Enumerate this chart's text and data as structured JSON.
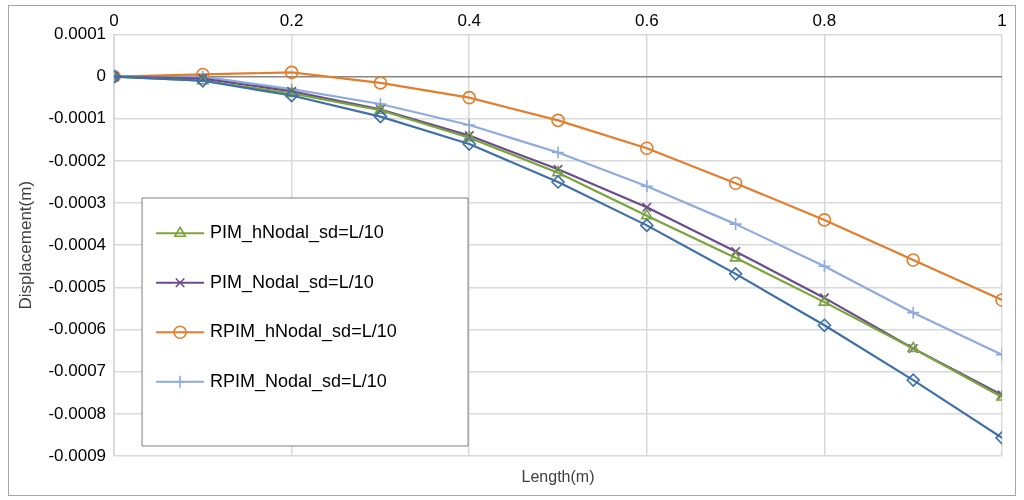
{
  "chart_data": {
    "type": "line",
    "xlabel": "Length(m)",
    "ylabel": "Displacement(m)",
    "x": [
      0,
      0.1,
      0.2,
      0.3,
      0.4,
      0.5,
      0.6,
      0.7,
      0.8,
      0.9,
      1
    ],
    "xlim": [
      0,
      1
    ],
    "xticks": [
      0,
      0.2,
      0.4,
      0.6,
      0.8,
      1
    ],
    "ylim": [
      -0.0009,
      0.0001
    ],
    "yticks": [
      -0.0009,
      -0.0008,
      -0.0007,
      -0.0006,
      -0.0005,
      -0.0004,
      -0.0003,
      -0.0002,
      -0.0001,
      0,
      0.0001
    ],
    "grid": true,
    "legend": "bottom left",
    "line_style": "solid",
    "series": [
      {
        "color": "#3e6fa8",
        "marker": "diamond",
        "values": [
          0,
          -1e-05,
          -4.5e-05,
          -9.5e-05,
          -0.00016,
          -0.00025,
          -0.000353,
          -0.000468,
          -0.00059,
          -0.00072,
          -0.000857
        ]
      },
      {
        "name": "PIM_hNodal_sd=L/10",
        "color": "#7aa43c",
        "marker": "triangle",
        "values": [
          0,
          -1e-05,
          -4e-05,
          -8e-05,
          -0.000145,
          -0.000228,
          -0.00033,
          -0.00043,
          -0.000535,
          -0.000645,
          -0.00076
        ]
      },
      {
        "name": "PIM_Nodal_sd=L/10",
        "color": "#6a4c8c",
        "marker": "cross",
        "values": [
          0,
          -5e-06,
          -3.5e-05,
          -7.8e-05,
          -0.00014,
          -0.00022,
          -0.00031,
          -0.000415,
          -0.000525,
          -0.000645,
          -0.000755
        ]
      },
      {
        "name": "RPIM_hNodal_sd=L/10",
        "color": "#e27e2e",
        "marker": "circle",
        "values": [
          0,
          5e-06,
          1e-05,
          -1.5e-05,
          -5e-05,
          -0.000104,
          -0.00017,
          -0.000253,
          -0.00034,
          -0.000435,
          -0.00053
        ]
      },
      {
        "name": "RPIM_Nodal_sd=L/10",
        "color": "#8faadc",
        "marker": "plus",
        "values": [
          0,
          0,
          -3e-05,
          -6.5e-05,
          -0.000115,
          -0.00018,
          -0.00026,
          -0.00035,
          -0.00045,
          -0.00056,
          -0.00066
        ]
      }
    ]
  }
}
